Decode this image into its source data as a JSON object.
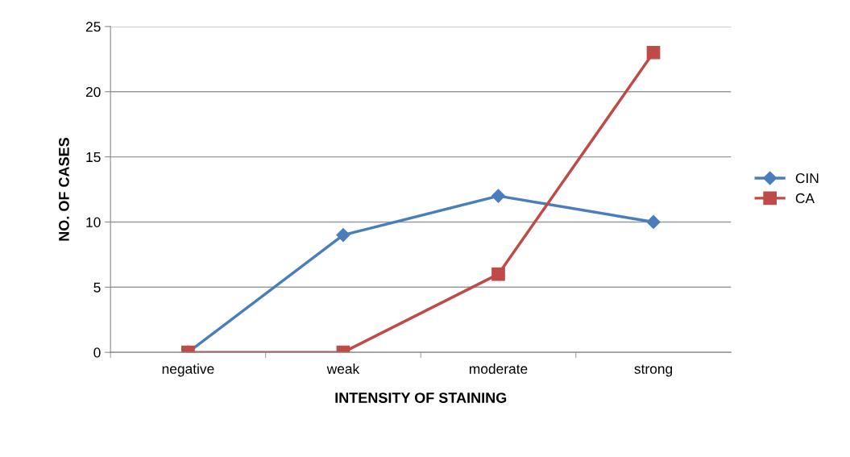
{
  "chart_data": {
    "type": "line",
    "xlabel": "INTENSITY OF STAINING",
    "ylabel": "NO. OF CASES",
    "categories": [
      "negative",
      "weak",
      "moderate",
      "strong"
    ],
    "series": [
      {
        "name": "CIN",
        "color": "#4a7ebb",
        "values": [
          0,
          9,
          12,
          10
        ],
        "marker": "diamond"
      },
      {
        "name": "CA",
        "color": "#be4b48",
        "values": [
          0,
          0,
          6,
          23
        ],
        "marker": "square"
      }
    ],
    "ylim": [
      0,
      25
    ],
    "yticks": [
      0,
      5,
      10,
      15,
      20,
      25
    ],
    "grid": "y",
    "legend": "right",
    "line_style": "solid"
  }
}
